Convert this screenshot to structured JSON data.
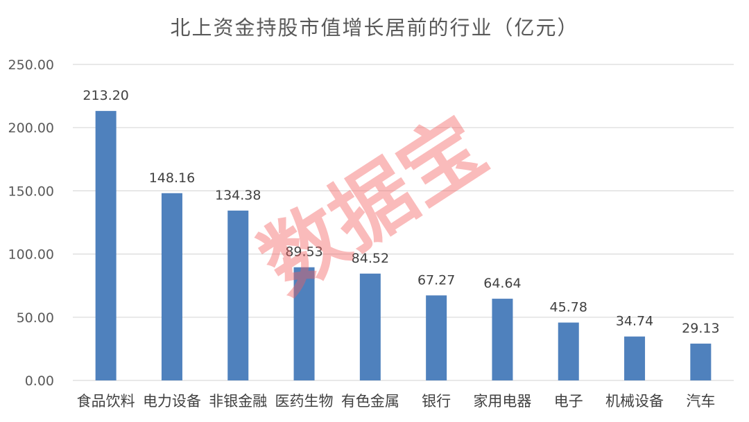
{
  "chart_data": {
    "type": "bar",
    "title": "北上资金持股市值增长居前的行业（亿元）",
    "categories": [
      "食品饮料",
      "电力设备",
      "非银金融",
      "医药生物",
      "有色金属",
      "银行",
      "家用电器",
      "电子",
      "机械设备",
      "汽车"
    ],
    "values": [
      213.2,
      148.16,
      134.38,
      89.53,
      84.52,
      67.27,
      64.64,
      45.78,
      34.74,
      29.13
    ],
    "data_labels": [
      "213.20",
      "148.16",
      "134.38",
      "89.53",
      "84.52",
      "67.27",
      "64.64",
      "45.78",
      "34.74",
      "29.13"
    ],
    "yticks": [
      "0.00",
      "50.00",
      "100.00",
      "150.00",
      "200.00",
      "250.00"
    ],
    "ytick_values": [
      0,
      50,
      100,
      150,
      200,
      250
    ],
    "ylim": [
      0,
      250
    ],
    "grid": true,
    "legend": "none",
    "bar_color": "#4f81bd",
    "grid_color": "#d9d9d9"
  },
  "watermark": "数据宝"
}
